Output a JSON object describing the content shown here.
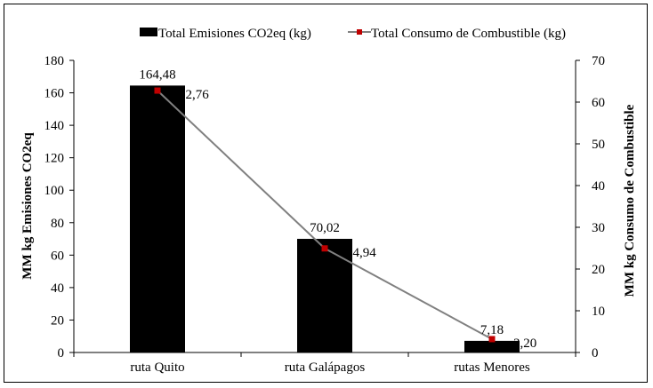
{
  "chart_data": {
    "type": "bar",
    "categories": [
      "ruta Quito",
      "ruta Galápagos",
      "rutas Menores"
    ],
    "series": [
      {
        "name": "Total Emisiones CO2eq (kg)",
        "type": "bar",
        "axis": "left",
        "color": "#000000",
        "values": [
          164.48,
          70.02,
          7.18
        ],
        "labels": [
          "164,48",
          "70,02",
          "7,18"
        ]
      },
      {
        "name": "Total Consumo de Combustible (kg)",
        "type": "line",
        "axis": "right",
        "color": "#808080",
        "marker_color": "#c00000",
        "values": [
          62.76,
          24.94,
          3.2
        ],
        "labels": [
          "62,76",
          "24,94",
          "3,20"
        ]
      }
    ],
    "ylabel": "MM kg Emisiones CO2eq",
    "y2label": "MM kg Consumo de Combustible",
    "ylim": [
      0,
      180
    ],
    "y2lim": [
      0,
      70
    ],
    "yticks": [
      "0",
      "20",
      "40",
      "60",
      "80",
      "100",
      "120",
      "140",
      "160",
      "180"
    ],
    "y2ticks": [
      "0",
      "10",
      "20",
      "30",
      "40",
      "50",
      "60",
      "70"
    ],
    "legend_position": "top",
    "grid": false
  }
}
